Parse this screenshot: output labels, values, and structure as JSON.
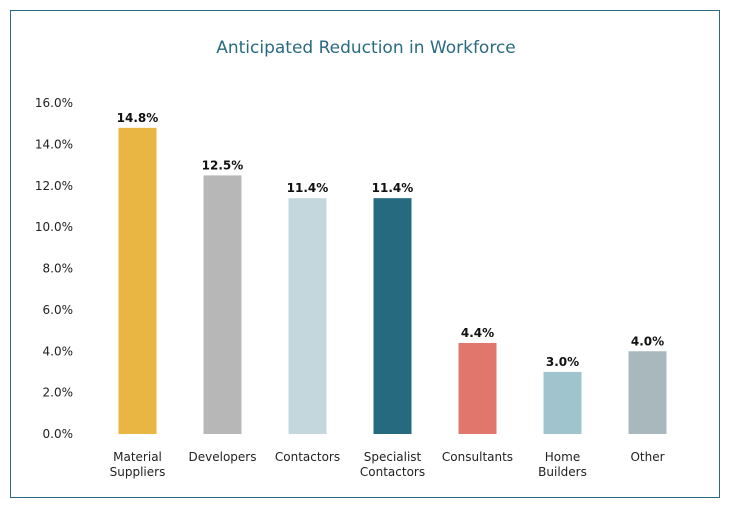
{
  "chart_data": {
    "type": "bar",
    "title": "Anticipated Reduction in Workforce",
    "categories": [
      [
        "Material",
        "Suppliers"
      ],
      [
        "Developers"
      ],
      [
        "Contactors"
      ],
      [
        "Specialist",
        "Contactors"
      ],
      [
        "Consultants"
      ],
      [
        "Home",
        "Builders"
      ],
      [
        "Other"
      ]
    ],
    "values": [
      14.8,
      12.5,
      11.4,
      11.4,
      4.4,
      3.0,
      4.0
    ],
    "data_labels": [
      "14.8%",
      "12.5%",
      "11.4%",
      "11.4%",
      "4.4%",
      "3.0%",
      "4.0%"
    ],
    "bar_colors": [
      "#eab643",
      "#b7b7b7",
      "#c4d7dd",
      "#266a80",
      "#e0766c",
      "#9fc4ce",
      "#a8b8bd"
    ],
    "ylim": [
      0,
      16
    ],
    "y_ticks": [
      "0.0%",
      "2.0%",
      "4.0%",
      "6.0%",
      "8.0%",
      "10.0%",
      "12.0%",
      "14.0%",
      "16.0%"
    ],
    "y_tick_values": [
      0,
      2,
      4,
      6,
      8,
      10,
      12,
      14,
      16
    ],
    "xlabel": "",
    "ylabel": "",
    "grid": false,
    "legend": false
  }
}
